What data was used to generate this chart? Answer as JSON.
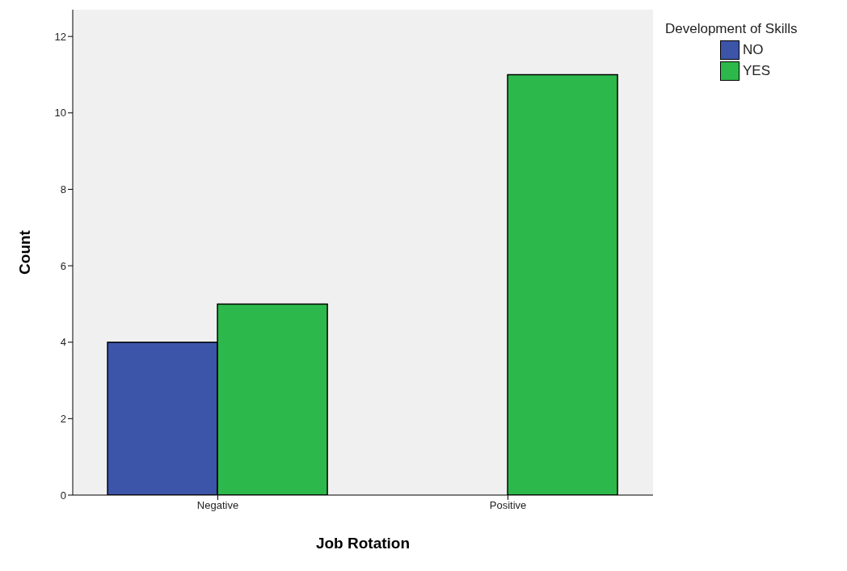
{
  "chart_data": {
    "type": "bar",
    "xlabel": "Job Rotation",
    "ylabel": "Count",
    "legend_title": "Development of Skills",
    "categories": [
      "Negative",
      "Positive"
    ],
    "series": [
      {
        "name": "NO",
        "color": "#3d55a8",
        "values": [
          4,
          0
        ]
      },
      {
        "name": "YES",
        "color": "#2db84b",
        "values": [
          5,
          11
        ]
      }
    ],
    "ylim": [
      0,
      12.7
    ],
    "yticks": [
      0,
      2,
      4,
      6,
      8,
      10,
      12
    ],
    "grid": false,
    "legend": "top right"
  }
}
